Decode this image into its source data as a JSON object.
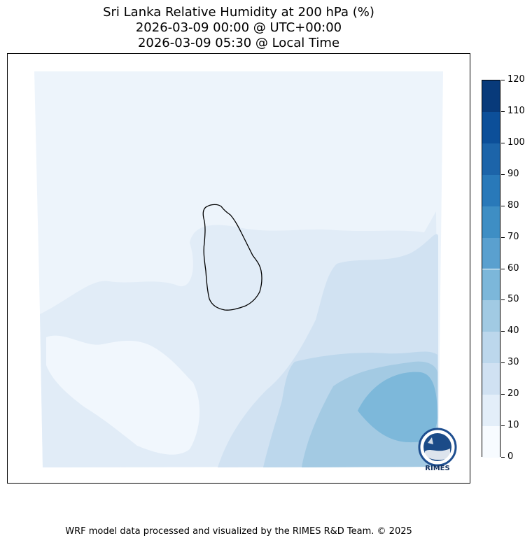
{
  "title": {
    "line1": "Sri Lanka Relative Humidity at 200 hPa (%)",
    "line2": "2026-03-09 00:00 @ UTC+00:00",
    "line3": "2026-03-09 05:30 @ Local Time"
  },
  "colorbar": {
    "ticks": [
      "0",
      "10",
      "20",
      "30",
      "40",
      "50",
      "60",
      "70",
      "80",
      "90",
      "100",
      "110",
      "120"
    ],
    "colors": [
      "#f7fbff",
      "#e3eef9",
      "#d0e1f2",
      "#bcd7ec",
      "#a1cae3",
      "#7cb7da",
      "#5aa0cf",
      "#3e8ec4",
      "#2979b9",
      "#1c64a9",
      "#0c4f99",
      "#083a7a"
    ]
  },
  "logo": {
    "text": "RIMES"
  },
  "footer": "WRF model data processed and visualized by the RIMES R&D Team. © 2025"
}
